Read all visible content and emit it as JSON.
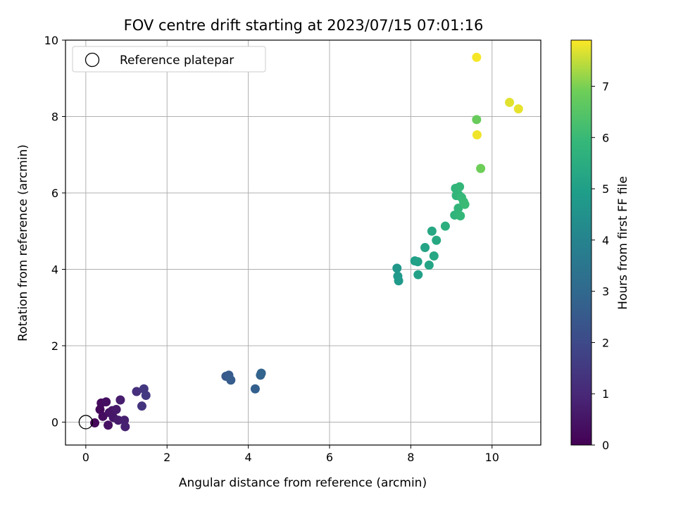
{
  "chart_data": {
    "type": "scatter",
    "title": "FOV centre drift starting at 2023/07/15 07:01:16",
    "xlabel": "Angular distance from reference (arcmin)",
    "ylabel": "Rotation from reference (arcmin)",
    "xlim": [
      -0.5,
      11.2
    ],
    "ylim": [
      -0.6,
      10
    ],
    "xticks": [
      0,
      2,
      4,
      6,
      8,
      10
    ],
    "yticks": [
      0,
      2,
      4,
      6,
      8,
      10
    ],
    "grid": true,
    "legend": {
      "placement": "top-left",
      "entries": [
        "Reference platepar"
      ]
    },
    "reference_point": {
      "name": "Reference platepar",
      "x": 0,
      "y": 0
    },
    "colorbar": {
      "label": "Hours from first FF file",
      "colormap": "viridis",
      "range": [
        0,
        7.9
      ],
      "ticks": [
        0,
        1,
        2,
        3,
        4,
        5,
        6,
        7
      ]
    },
    "points": [
      {
        "x": 0.22,
        "y": -0.02,
        "h": 0.15
      },
      {
        "x": 0.35,
        "y": 0.33,
        "h": 0.2
      },
      {
        "x": 0.38,
        "y": 0.5,
        "h": 0.25
      },
      {
        "x": 0.42,
        "y": 0.15,
        "h": 0.3
      },
      {
        "x": 0.5,
        "y": 0.53,
        "h": 0.35
      },
      {
        "x": 0.55,
        "y": -0.08,
        "h": 0.4
      },
      {
        "x": 0.58,
        "y": 0.25,
        "h": 0.45
      },
      {
        "x": 0.65,
        "y": 0.3,
        "h": 0.5
      },
      {
        "x": 0.68,
        "y": 0.12,
        "h": 0.55
      },
      {
        "x": 0.75,
        "y": 0.33,
        "h": 0.6
      },
      {
        "x": 0.8,
        "y": 0.05,
        "h": 0.65
      },
      {
        "x": 0.85,
        "y": 0.58,
        "h": 0.7
      },
      {
        "x": 0.95,
        "y": 0.05,
        "h": 0.75
      },
      {
        "x": 0.97,
        "y": -0.12,
        "h": 0.8
      },
      {
        "x": 1.25,
        "y": 0.8,
        "h": 1.2
      },
      {
        "x": 1.38,
        "y": 0.42,
        "h": 1.35
      },
      {
        "x": 1.43,
        "y": 0.87,
        "h": 1.45
      },
      {
        "x": 1.48,
        "y": 0.7,
        "h": 1.5
      },
      {
        "x": 3.45,
        "y": 1.2,
        "h": 2.5
      },
      {
        "x": 3.52,
        "y": 1.23,
        "h": 2.55
      },
      {
        "x": 3.57,
        "y": 1.1,
        "h": 2.6
      },
      {
        "x": 4.17,
        "y": 0.87,
        "h": 2.7
      },
      {
        "x": 4.3,
        "y": 1.23,
        "h": 2.8
      },
      {
        "x": 4.32,
        "y": 1.28,
        "h": 2.85
      },
      {
        "x": 7.66,
        "y": 4.03,
        "h": 4.7
      },
      {
        "x": 7.68,
        "y": 3.82,
        "h": 4.75
      },
      {
        "x": 7.7,
        "y": 3.7,
        "h": 4.8
      },
      {
        "x": 8.1,
        "y": 4.22,
        "h": 5.0
      },
      {
        "x": 8.17,
        "y": 4.2,
        "h": 5.05
      },
      {
        "x": 8.18,
        "y": 3.86,
        "h": 5.05
      },
      {
        "x": 8.35,
        "y": 4.57,
        "h": 5.15
      },
      {
        "x": 8.45,
        "y": 4.11,
        "h": 5.2
      },
      {
        "x": 8.52,
        "y": 5.0,
        "h": 5.3
      },
      {
        "x": 8.57,
        "y": 4.35,
        "h": 5.3
      },
      {
        "x": 8.63,
        "y": 4.76,
        "h": 5.35
      },
      {
        "x": 8.85,
        "y": 5.13,
        "h": 5.55
      },
      {
        "x": 9.08,
        "y": 5.42,
        "h": 5.75
      },
      {
        "x": 9.1,
        "y": 6.12,
        "h": 5.8
      },
      {
        "x": 9.12,
        "y": 5.93,
        "h": 5.8
      },
      {
        "x": 9.17,
        "y": 5.6,
        "h": 5.85
      },
      {
        "x": 9.18,
        "y": 5.95,
        "h": 5.85
      },
      {
        "x": 9.2,
        "y": 6.16,
        "h": 5.9
      },
      {
        "x": 9.22,
        "y": 5.4,
        "h": 5.9
      },
      {
        "x": 9.25,
        "y": 5.88,
        "h": 5.95
      },
      {
        "x": 9.3,
        "y": 5.77,
        "h": 6.0
      },
      {
        "x": 9.33,
        "y": 5.7,
        "h": 6.05
      },
      {
        "x": 9.62,
        "y": 7.92,
        "h": 6.8
      },
      {
        "x": 9.72,
        "y": 6.64,
        "h": 6.9
      },
      {
        "x": 9.62,
        "y": 9.55,
        "h": 7.85
      },
      {
        "x": 9.63,
        "y": 7.52,
        "h": 7.8
      },
      {
        "x": 10.43,
        "y": 8.37,
        "h": 7.7
      },
      {
        "x": 10.65,
        "y": 8.2,
        "h": 7.75
      }
    ]
  }
}
